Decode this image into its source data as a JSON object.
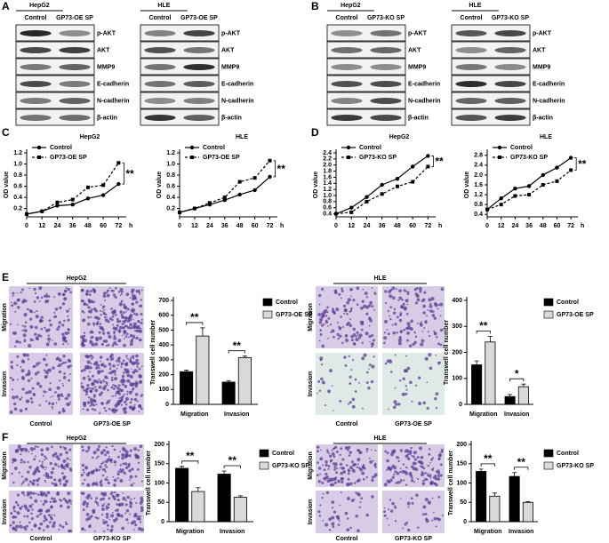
{
  "panel_labels": [
    "A",
    "B",
    "C",
    "D",
    "E",
    "F"
  ],
  "blots": [
    {
      "cell_line": "HepG2",
      "columns": [
        "Control",
        "GP73-OE SP"
      ],
      "rows": [
        "p-AKT",
        "AKT",
        "MMP9",
        "E-cadherin",
        "N-cadherin",
        "β-actin"
      ]
    },
    {
      "cell_line": "HLE",
      "columns": [
        "Control",
        "GP73-OE SP"
      ],
      "rows": [
        "p-AKT",
        "AKT",
        "MMP9",
        "E-cadherin",
        "N-cadherin",
        "β-actin"
      ]
    },
    {
      "cell_line": "HepG2",
      "columns": [
        "Control",
        "GP73-KO SP"
      ],
      "rows": [
        "p-AKT",
        "AKT",
        "MMP9",
        "E-cadherin",
        "N-cadherin",
        "β-actin"
      ]
    },
    {
      "cell_line": "HLE",
      "columns": [
        "Control",
        "GP73-KO SP"
      ],
      "rows": [
        "p-AKT",
        "AKT",
        "MMP9",
        "E-cadherin",
        "N-cadherin",
        "β-actin"
      ]
    }
  ],
  "micrographs": [
    {
      "cell_line": "HepG2",
      "columns": [
        "Control",
        "GP73-OE SP"
      ],
      "rows": [
        "Migration",
        "Invasion"
      ]
    },
    {
      "cell_line": "HLE",
      "columns": [
        "Control",
        "GP73-OE SP"
      ],
      "rows": [
        "Migration",
        "Invasion"
      ]
    },
    {
      "cell_line": "HepG2",
      "columns": [
        "Control",
        "GP73-KO SP"
      ],
      "rows": [
        "Migration",
        "Invasion"
      ]
    },
    {
      "cell_line": "HLE",
      "columns": [
        "Control",
        "GP73-KO SP"
      ],
      "rows": [
        "Migration",
        "Invasion"
      ]
    }
  ],
  "chart_data": [
    {
      "type": "line",
      "title": "HepG2",
      "x": [
        0,
        12,
        24,
        36,
        48,
        60,
        72
      ],
      "xlim": [
        0,
        78
      ],
      "xticks": [
        0,
        12,
        24,
        36,
        48,
        60,
        72
      ],
      "xlabel": "h",
      "ylabel": "OD value",
      "ylim": [
        0.05,
        1.2
      ],
      "yticks": [
        0.2,
        0.4,
        0.6,
        0.8,
        {
          "value": 1,
          "label": "1.0"
        },
        1.2
      ],
      "series": [
        {
          "name": "Control",
          "color": "#000000",
          "dash": false,
          "marker": "circle",
          "values": [
            0.1,
            0.15,
            0.25,
            0.27,
            0.38,
            0.44,
            0.64
          ]
        },
        {
          "name": "GP73-OE SP",
          "color": "#000000",
          "dash": true,
          "marker": "square",
          "values": [
            0.1,
            0.15,
            0.31,
            0.36,
            0.58,
            0.62,
            1.02
          ]
        }
      ],
      "significance": "**",
      "legend": "upper left"
    },
    {
      "type": "line",
      "title": "HLE",
      "x": [
        0,
        12,
        24,
        36,
        48,
        60,
        72
      ],
      "xlim": [
        0,
        78
      ],
      "xticks": [
        0,
        12,
        24,
        36,
        48,
        60,
        72
      ],
      "xlabel": "h",
      "ylabel": "OD value",
      "ylim": [
        0.05,
        1.2
      ],
      "yticks": [
        0.2,
        0.4,
        0.6,
        0.8,
        {
          "value": 1,
          "label": "1.0"
        },
        1.2
      ],
      "series": [
        {
          "name": "Control",
          "color": "#000000",
          "dash": false,
          "marker": "circle",
          "values": [
            0.13,
            0.2,
            0.27,
            0.35,
            0.45,
            0.53,
            0.77
          ]
        },
        {
          "name": "GP73-OE SP",
          "color": "#000000",
          "dash": true,
          "marker": "square",
          "values": [
            0.13,
            0.2,
            0.3,
            0.4,
            0.68,
            0.75,
            1.06
          ]
        }
      ],
      "significance": "**",
      "legend": "upper left"
    },
    {
      "type": "line",
      "title": "HepG2",
      "x": [
        0,
        12,
        24,
        36,
        48,
        60,
        72
      ],
      "xlim": [
        0,
        78
      ],
      "xticks": [
        0,
        12,
        24,
        36,
        48,
        60,
        72
      ],
      "xlabel": "h",
      "ylabel": "OD value",
      "ylim": [
        0.3,
        2.4
      ],
      "yticks": [
        0.4,
        0.6,
        0.8,
        {
          "value": 1,
          "label": "1.0"
        },
        1.2,
        1.4,
        1.6,
        1.8,
        {
          "value": 2,
          "label": "2.0"
        },
        2.2,
        2.4
      ],
      "series": [
        {
          "name": "Control",
          "color": "#000000",
          "dash": false,
          "marker": "circle",
          "values": [
            0.4,
            0.6,
            0.95,
            1.35,
            1.55,
            1.95,
            2.3
          ]
        },
        {
          "name": "GP73-KO SP",
          "color": "#000000",
          "dash": true,
          "marker": "square",
          "values": [
            0.4,
            0.45,
            0.8,
            1.05,
            1.3,
            1.45,
            1.95
          ]
        }
      ],
      "significance": "**",
      "legend": "upper left"
    },
    {
      "type": "line",
      "title": "HLE",
      "x": [
        0,
        12,
        24,
        36,
        48,
        60,
        72
      ],
      "xlim": [
        0,
        78
      ],
      "xticks": [
        0,
        12,
        24,
        36,
        48,
        60,
        72
      ],
      "xlabel": "h",
      "ylabel": "OD value",
      "ylim": [
        0.3,
        2.9
      ],
      "yticks": [
        0.4,
        0.8,
        1.2,
        1.6,
        {
          "value": 2,
          "label": "2.0"
        },
        2.4,
        2.8
      ],
      "series": [
        {
          "name": "Control",
          "color": "#000000",
          "dash": false,
          "marker": "circle",
          "values": [
            0.6,
            1.05,
            1.45,
            1.55,
            2.0,
            2.3,
            2.7
          ]
        },
        {
          "name": "GP73-KO SP",
          "color": "#000000",
          "dash": true,
          "marker": "square",
          "values": [
            0.6,
            0.8,
            1.15,
            1.2,
            1.6,
            1.75,
            2.2
          ]
        }
      ],
      "significance": "**",
      "legend": "upper left"
    },
    {
      "type": "bar",
      "categories": [
        "Migration",
        "Invasion"
      ],
      "ylabel": "Transwell cell number",
      "ylim": [
        0,
        700
      ],
      "yticks": [
        0,
        100,
        200,
        300,
        400,
        500,
        600,
        700
      ],
      "series": [
        {
          "name": "Control",
          "color": "#000000",
          "values": [
            220,
            150
          ],
          "errors": [
            10,
            10
          ]
        },
        {
          "name": "GP73-OE SP",
          "color": "#d9d9d9",
          "values": [
            460,
            315
          ],
          "errors": [
            55,
            10
          ]
        }
      ],
      "significance": [
        "**",
        "**"
      ],
      "legend": "upper right"
    },
    {
      "type": "bar",
      "categories": [
        "Migration",
        "Invasion"
      ],
      "ylabel": "Transwell cell number",
      "ylim": [
        0,
        400
      ],
      "yticks": [
        0,
        100,
        200,
        300,
        400
      ],
      "series": [
        {
          "name": "Control",
          "color": "#000000",
          "values": [
            152,
            30
          ],
          "errors": [
            15,
            8
          ]
        },
        {
          "name": "GP73-OE SP",
          "color": "#d9d9d9",
          "values": [
            240,
            68
          ],
          "errors": [
            22,
            10
          ]
        }
      ],
      "significance": [
        "**",
        "*"
      ],
      "legend": "upper right"
    },
    {
      "type": "bar",
      "categories": [
        "Migration",
        "Invasion"
      ],
      "ylabel": "Transwell cell number",
      "ylim": [
        0,
        200
      ],
      "yticks": [
        0,
        50,
        100,
        150,
        200
      ],
      "series": [
        {
          "name": "Control",
          "color": "#000000",
          "values": [
            138,
            123
          ],
          "errors": [
            5,
            8
          ]
        },
        {
          "name": "GP73-KO SP",
          "color": "#d9d9d9",
          "values": [
            78,
            63
          ],
          "errors": [
            10,
            4
          ]
        }
      ],
      "significance": [
        "**",
        "**"
      ],
      "legend": "upper right"
    },
    {
      "type": "bar",
      "categories": [
        "Migration",
        "Invasion"
      ],
      "ylabel": "Transwell cell number",
      "ylim": [
        0,
        200
      ],
      "yticks": [
        0,
        50,
        100,
        150,
        200
      ],
      "series": [
        {
          "name": "Control",
          "color": "#000000",
          "values": [
            130,
            117
          ],
          "errors": [
            6,
            10
          ]
        },
        {
          "name": "GP73-KO SP",
          "color": "#d9d9d9",
          "values": [
            66,
            50
          ],
          "errors": [
            8,
            2
          ]
        }
      ],
      "significance": [
        "**",
        "**"
      ],
      "legend": "upper right"
    }
  ]
}
